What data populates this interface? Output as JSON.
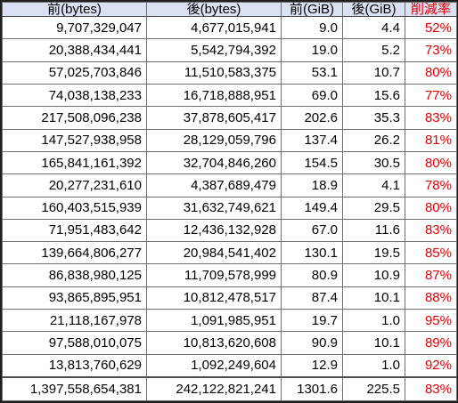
{
  "table": {
    "headers": [
      "前(bytes)",
      "後(bytes)",
      "前(GiB)",
      "後(GiB)",
      "削減率"
    ],
    "rows": [
      [
        "9,707,329,047",
        "4,677,015,941",
        "9.0",
        "4.4",
        "52%"
      ],
      [
        "20,388,434,441",
        "5,542,794,392",
        "19.0",
        "5.2",
        "73%"
      ],
      [
        "57,025,703,846",
        "11,510,583,375",
        "53.1",
        "10.7",
        "80%"
      ],
      [
        "74,038,138,233",
        "16,718,888,951",
        "69.0",
        "15.6",
        "77%"
      ],
      [
        "217,508,096,238",
        "37,878,605,417",
        "202.6",
        "35.3",
        "83%"
      ],
      [
        "147,527,938,958",
        "28,129,059,796",
        "137.4",
        "26.2",
        "81%"
      ],
      [
        "165,841,161,392",
        "32,704,846,260",
        "154.5",
        "30.5",
        "80%"
      ],
      [
        "20,277,231,610",
        "4,387,689,479",
        "18.9",
        "4.1",
        "78%"
      ],
      [
        "160,403,515,939",
        "31,632,749,621",
        "149.4",
        "29.5",
        "80%"
      ],
      [
        "71,951,483,642",
        "12,436,132,928",
        "67.0",
        "11.6",
        "83%"
      ],
      [
        "139,664,806,277",
        "20,984,541,402",
        "130.1",
        "19.5",
        "85%"
      ],
      [
        "86,838,980,125",
        "11,709,578,999",
        "80.9",
        "10.9",
        "87%"
      ],
      [
        "93,865,895,951",
        "10,812,478,517",
        "87.4",
        "10.1",
        "88%"
      ],
      [
        "21,118,167,978",
        "1,091,985,951",
        "19.7",
        "1.0",
        "95%"
      ],
      [
        "97,588,010,075",
        "10,813,620,608",
        "90.9",
        "10.1",
        "89%"
      ],
      [
        "13,813,760,629",
        "1,092,249,604",
        "12.9",
        "1.0",
        "92%"
      ]
    ],
    "total": [
      "1,397,558,654,381",
      "242,122,821,241",
      "1301.6",
      "225.5",
      "83%"
    ]
  },
  "colors": {
    "header_bg": "#d9e1f2",
    "reduction_text": "#e00000"
  }
}
